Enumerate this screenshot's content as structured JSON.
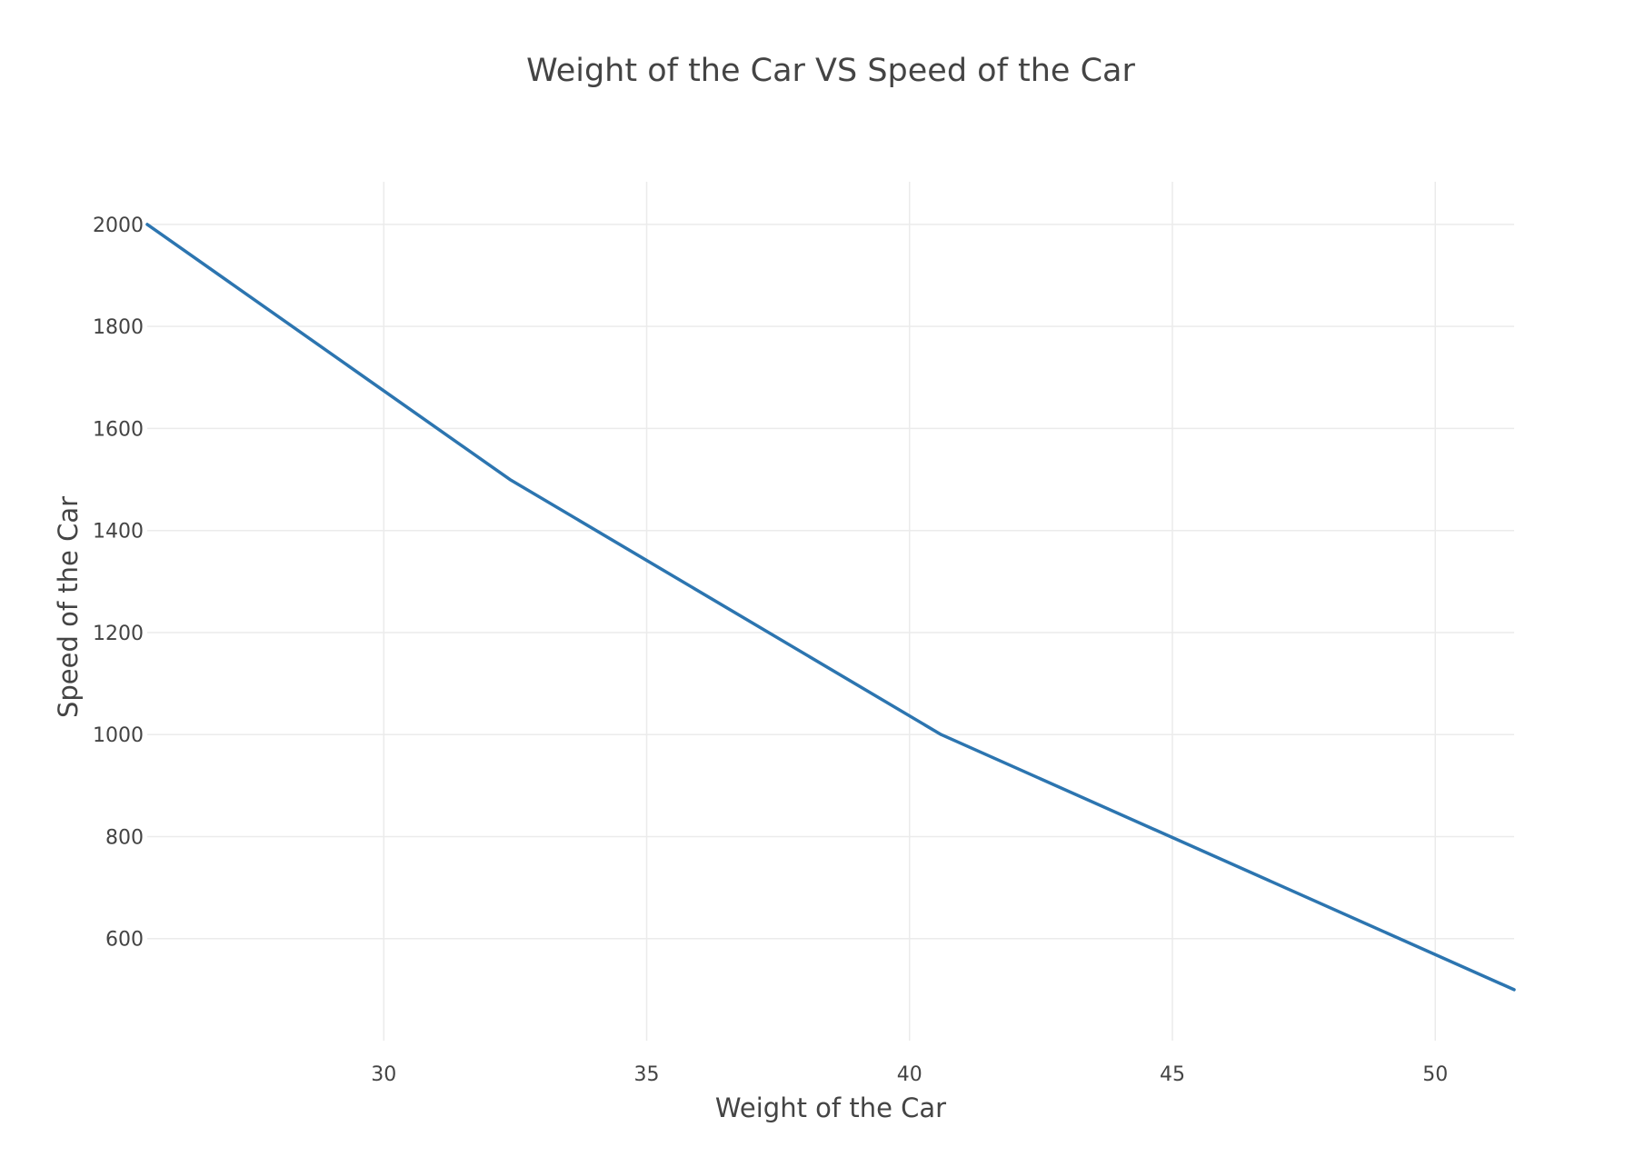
{
  "chart_data": {
    "type": "line",
    "title": "Weight of the Car VS Speed of the Car",
    "xlabel": "Weight of the Car",
    "ylabel": "Speed of the Car",
    "xlim": [
      25.5,
      51.5
    ],
    "ylim": [
      400,
      2080
    ],
    "x_ticks": [
      30,
      35,
      40,
      45,
      50
    ],
    "y_ticks": [
      600,
      800,
      1000,
      1200,
      1400,
      1600,
      1800,
      2000
    ],
    "grid": true,
    "legend": "none",
    "series": [
      {
        "color": "#2c75b0",
        "points": [
          {
            "x": 25.5,
            "y": 2000
          },
          {
            "x": 32.4,
            "y": 1500
          },
          {
            "x": 40.6,
            "y": 1000
          },
          {
            "x": 51.5,
            "y": 500
          }
        ]
      }
    ]
  }
}
